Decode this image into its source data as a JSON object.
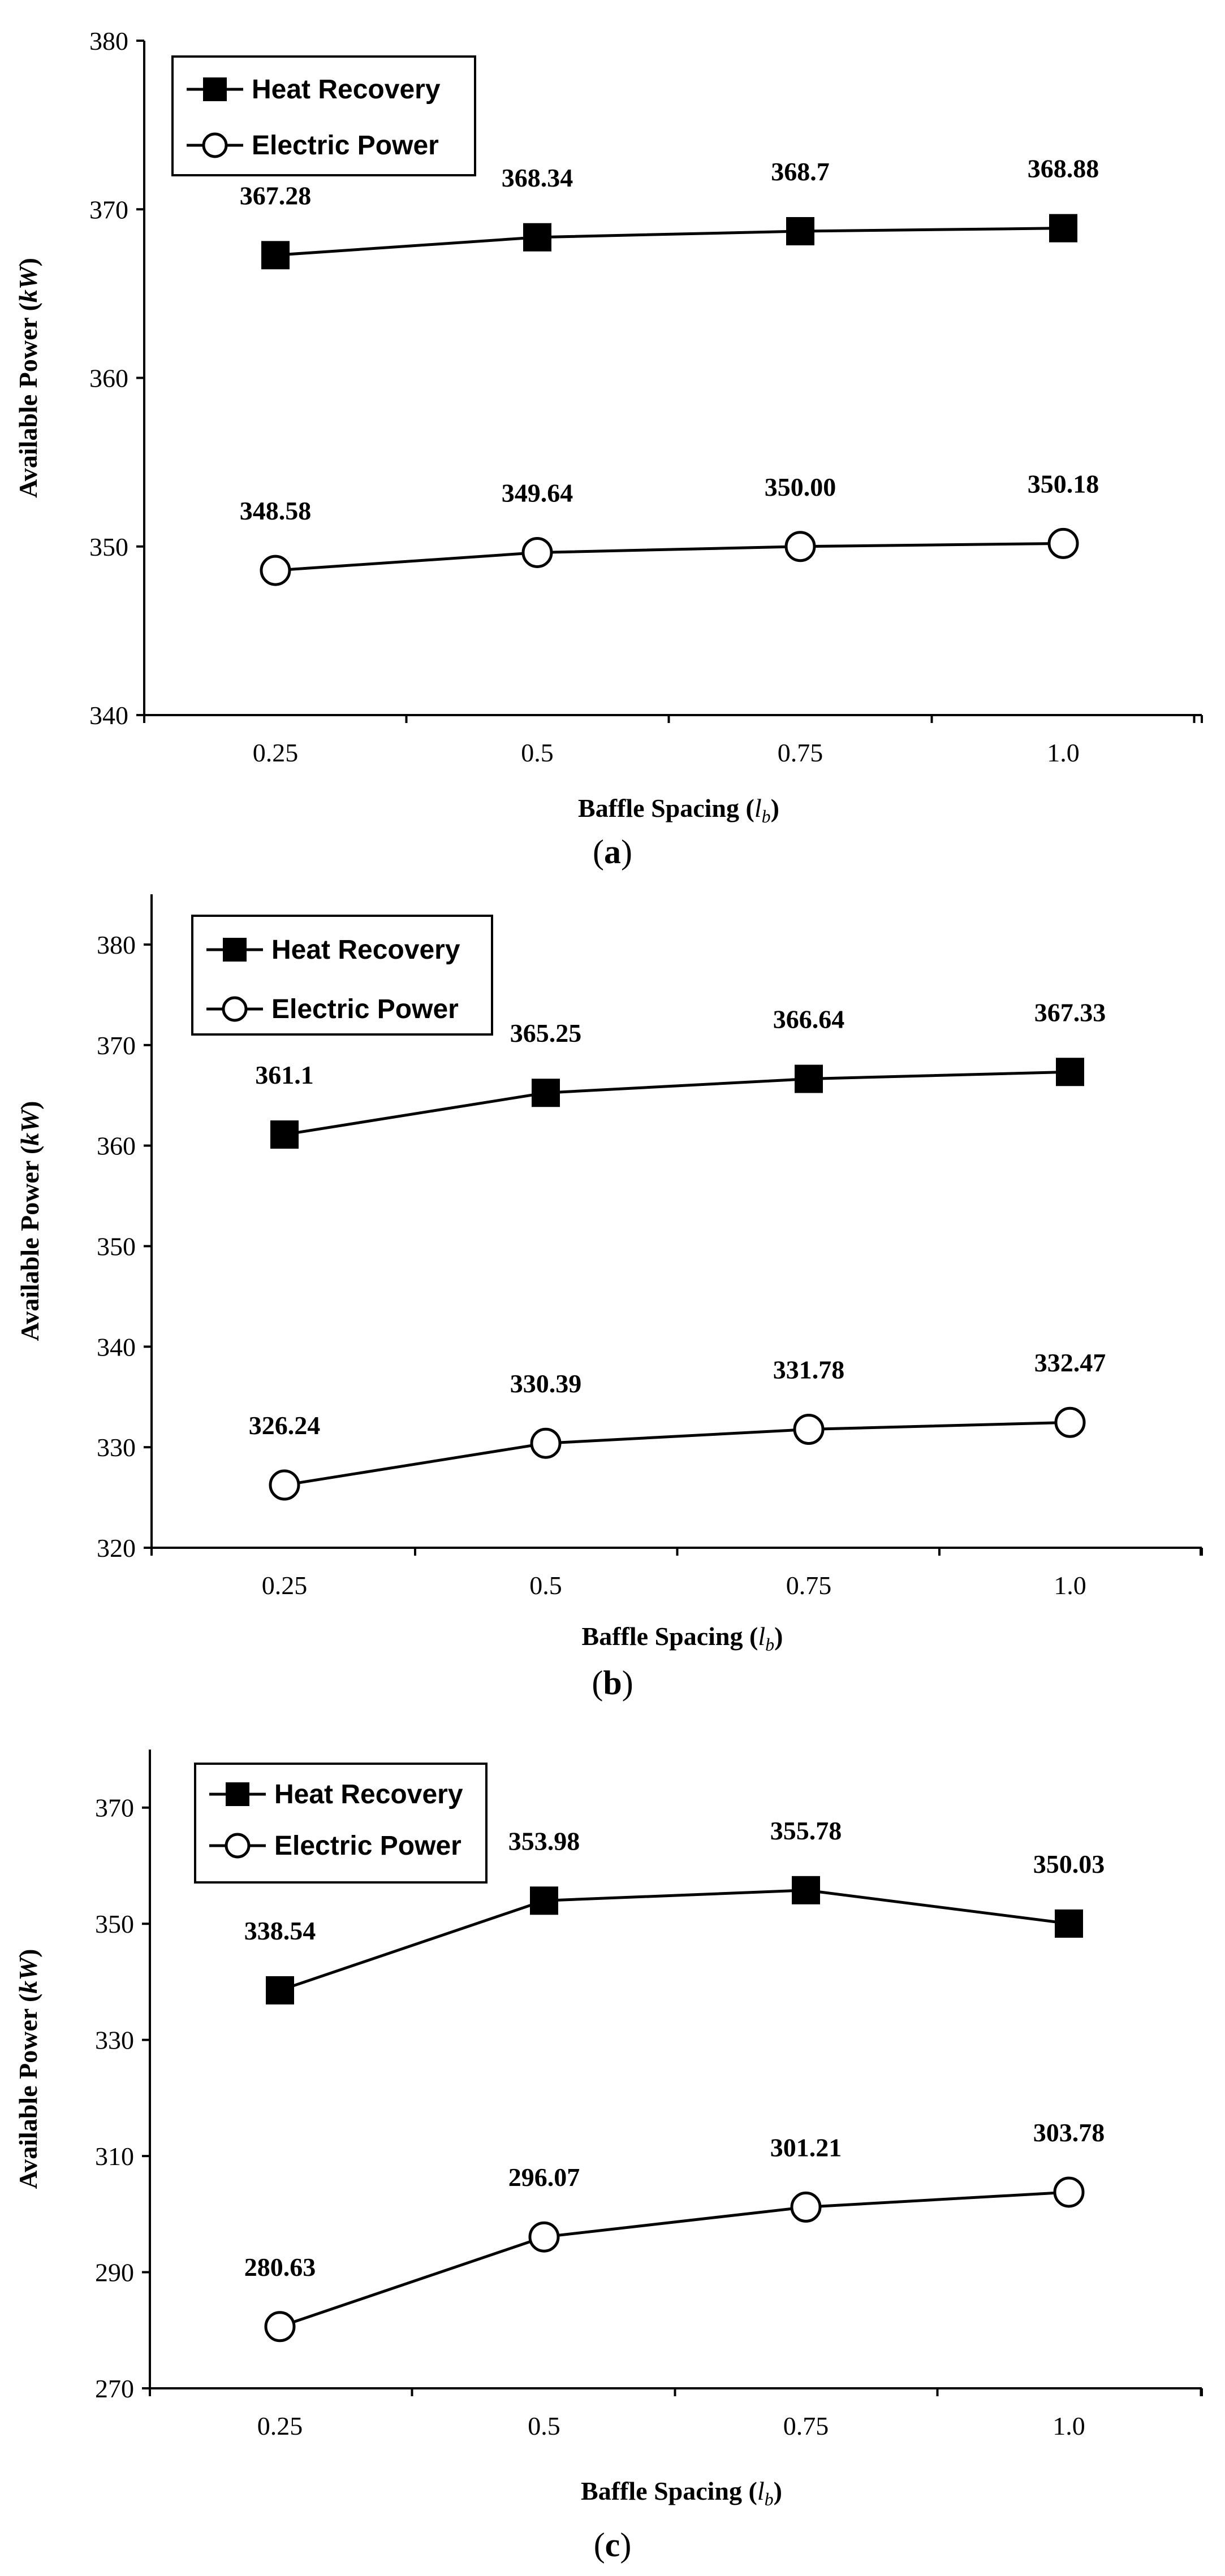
{
  "chart_data": [
    {
      "type": "line",
      "panel_label": "a",
      "categories": [
        "0.25",
        "0.5",
        "0.75",
        "1.0"
      ],
      "xlabel": "Baffle Spacing (",
      "xlabel_symbol": "l",
      "xlabel_sub": "b",
      "xlabel_end": ")",
      "ylabel": "Available Power (",
      "ylabel_unit": "kW",
      "ylabel_end": ")",
      "ylim": [
        340,
        380
      ],
      "yticks": [
        340,
        350,
        360,
        370,
        380
      ],
      "legend_position": "top-left",
      "series": [
        {
          "name": "Heat Recovery",
          "marker": "square-filled",
          "values": [
            367.28,
            368.34,
            368.7,
            368.88
          ],
          "labels": [
            "367.28",
            "368.34",
            "368.7",
            "368.88"
          ]
        },
        {
          "name": "Electric Power",
          "marker": "circle-open",
          "values": [
            348.58,
            349.64,
            350.0,
            350.18
          ],
          "labels": [
            "348.58",
            "349.64",
            "350.00",
            "350.18"
          ]
        }
      ]
    },
    {
      "type": "line",
      "panel_label": "b",
      "categories": [
        "0.25",
        "0.5",
        "0.75",
        "1.0"
      ],
      "xlabel": "Baffle Spacing (",
      "xlabel_symbol": "l",
      "xlabel_sub": "b",
      "xlabel_end": ")",
      "ylabel": "Available Power (",
      "ylabel_unit": "kW",
      "ylabel_end": ")",
      "ylim": [
        320,
        385
      ],
      "yticks": [
        320,
        330,
        340,
        350,
        360,
        370,
        380
      ],
      "legend_position": "top-left",
      "series": [
        {
          "name": "Heat Recovery",
          "marker": "square-filled",
          "values": [
            361.1,
            365.25,
            366.64,
            367.33
          ],
          "labels": [
            "361.1",
            "365.25",
            "366.64",
            "367.33"
          ]
        },
        {
          "name": "Electric Power",
          "marker": "circle-open",
          "values": [
            326.24,
            330.39,
            331.78,
            332.47
          ],
          "labels": [
            "326.24",
            "330.39",
            "331.78",
            "332.47"
          ]
        }
      ]
    },
    {
      "type": "line",
      "panel_label": "c",
      "categories": [
        "0.25",
        "0.5",
        "0.75",
        "1.0"
      ],
      "xlabel": "Baffle Spacing (",
      "xlabel_symbol": "l",
      "xlabel_sub": "b",
      "xlabel_end": ")",
      "ylabel": "Available Power (",
      "ylabel_unit": "kW",
      "ylabel_end": ")",
      "ylim": [
        270,
        380
      ],
      "yticks": [
        270,
        290,
        310,
        330,
        350,
        370
      ],
      "legend_position": "top-left",
      "series": [
        {
          "name": "Heat Recovery",
          "marker": "square-filled",
          "values": [
            338.54,
            353.98,
            355.78,
            350.03
          ],
          "labels": [
            "338.54",
            "353.98",
            "355.78",
            "350.03"
          ]
        },
        {
          "name": "Electric Power",
          "marker": "circle-open",
          "values": [
            280.63,
            296.07,
            301.21,
            303.78
          ],
          "labels": [
            "280.63",
            "296.07",
            "301.21",
            "303.78"
          ]
        }
      ]
    }
  ]
}
